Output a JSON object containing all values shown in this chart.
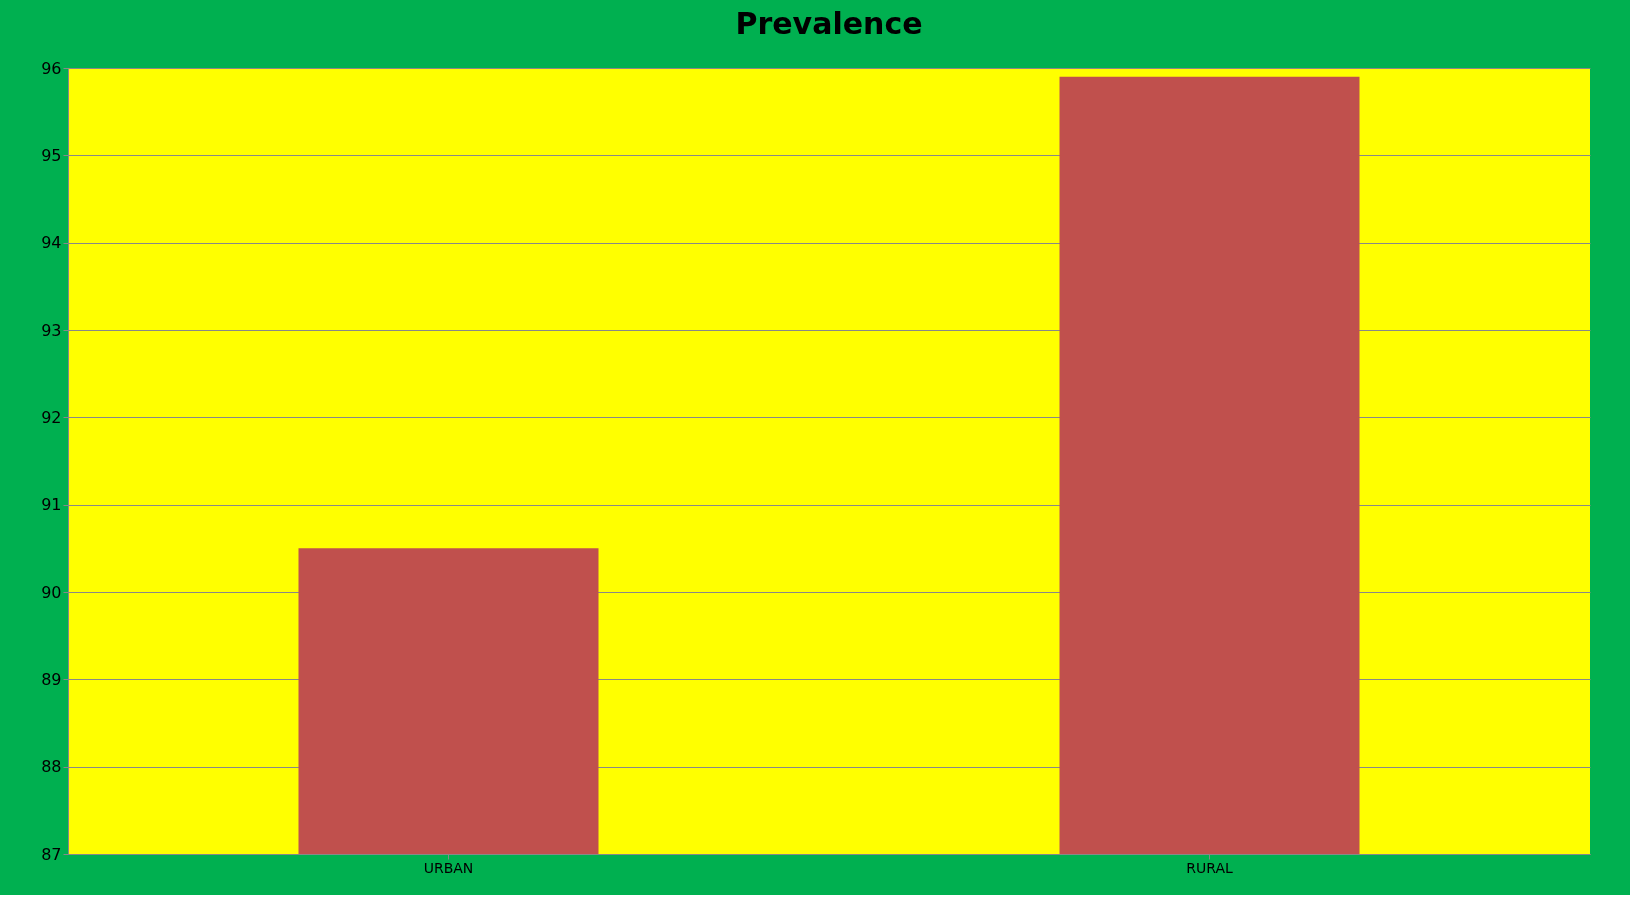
{
  "chart_data": {
    "type": "bar",
    "title": "Prevalence",
    "categories": [
      "URBAN",
      "RURAL"
    ],
    "values": [
      90.5,
      95.9
    ],
    "color": "#c0504d",
    "ylim": [
      87,
      96
    ],
    "yticks": [
      87,
      88,
      89,
      90,
      91,
      92,
      93,
      94,
      95,
      96
    ],
    "grid": "y"
  }
}
